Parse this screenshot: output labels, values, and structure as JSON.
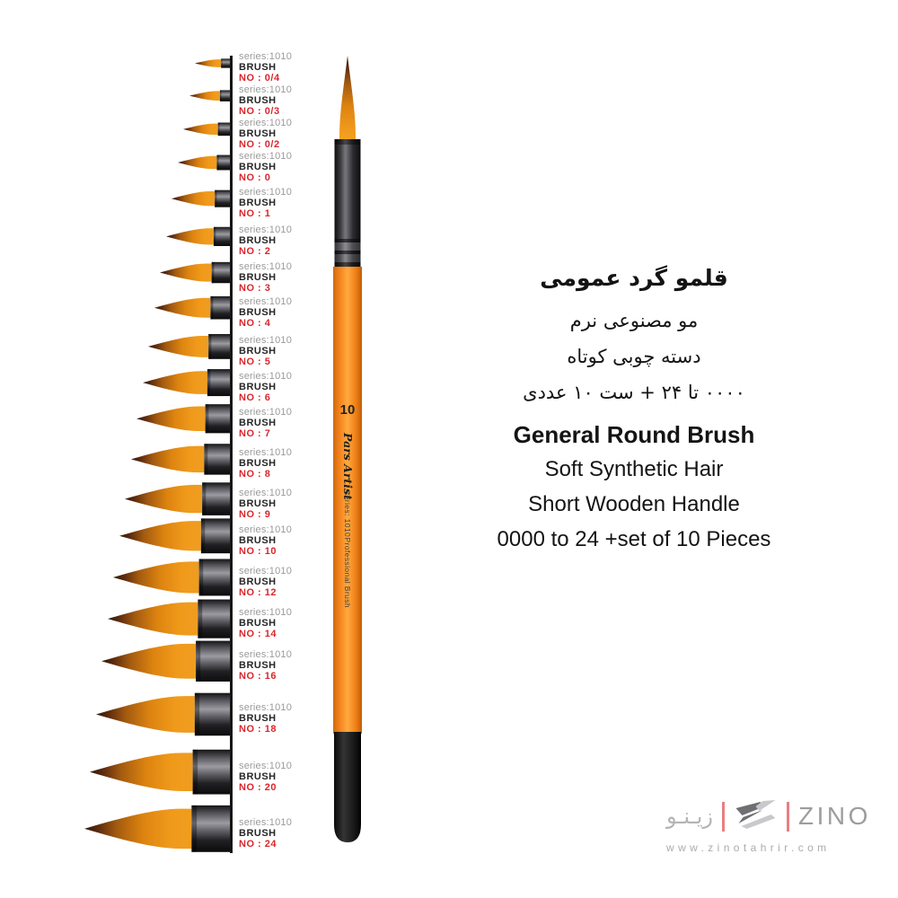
{
  "brush_list": {
    "series_label": "series:1010",
    "type_label": "BRUSH",
    "items": [
      {
        "no": "NO : 0/4"
      },
      {
        "no": "NO : 0/3"
      },
      {
        "no": "NO : 0/2"
      },
      {
        "no": "NO : 0"
      },
      {
        "no": "NO : 1"
      },
      {
        "no": "NO : 2"
      },
      {
        "no": "NO : 3"
      },
      {
        "no": "NO : 4"
      },
      {
        "no": "NO : 5"
      },
      {
        "no": "NO : 6"
      },
      {
        "no": "NO : 7"
      },
      {
        "no": "NO : 8"
      },
      {
        "no": "NO : 9"
      },
      {
        "no": "NO : 10"
      },
      {
        "no": "NO : 12"
      },
      {
        "no": "NO : 14"
      },
      {
        "no": "NO : 16"
      },
      {
        "no": "NO : 18"
      },
      {
        "no": "NO : 20"
      },
      {
        "no": "NO : 24"
      }
    ]
  },
  "main_brush": {
    "size_number": "10",
    "brand": "Pars Artist",
    "series_text": "series: 1010",
    "type_text": "Professional Brush"
  },
  "description_fa": {
    "title": "قلمو گرد عمومی",
    "lines": [
      "مو مصنوعی نرم",
      "دسته چوبی کوتاه",
      "۰۰۰۰ تا ۲۴ + ست ۱۰ عددی"
    ]
  },
  "description_en": {
    "title": "General Round Brush",
    "lines": [
      "Soft Synthetic Hair",
      "Short Wooden Handle",
      "0000 to 24 +set of 10 Pieces"
    ]
  },
  "logo": {
    "brand_fa": "زیـنـو",
    "brand_en": "ZINO",
    "website": "www.zinotahrir.com",
    "mark_icon": "zino-z-mark"
  },
  "colors": {
    "label_series_gray": "#9a9a9a",
    "label_number_red": "#d9262c",
    "handle_orange": "#f6861f",
    "logo_accent_red": "#e87e82",
    "logo_gray": "#9d9d9d"
  }
}
